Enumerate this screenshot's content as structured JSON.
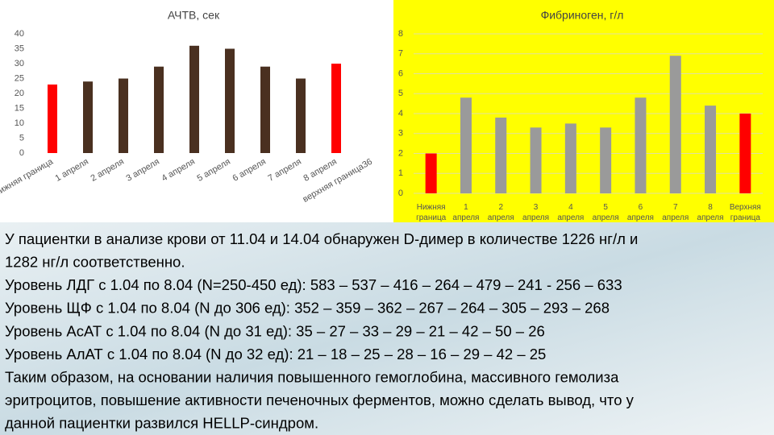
{
  "chart_data": [
    {
      "type": "bar",
      "title": "АЧТВ, сек",
      "categories": [
        "Нижняя граница",
        "1 апреля",
        "2 апреля",
        "3 апреля",
        "4 апреля",
        "5 апреля",
        "6 апреля",
        "7 апреля",
        "8 апреля",
        "верхняя граница36"
      ],
      "values": [
        23,
        24,
        25,
        29,
        36,
        35,
        29,
        25,
        30,
        null
      ],
      "colors": [
        "#ff0000",
        "#4a3020",
        "#4a3020",
        "#4a3020",
        "#4a3020",
        "#4a3020",
        "#4a3020",
        "#4a3020",
        "#ff0000",
        null
      ],
      "ylim": [
        0,
        40
      ],
      "yticks": [
        0,
        5,
        10,
        15,
        20,
        25,
        30,
        35,
        40
      ],
      "grid": false,
      "background": "#ffffff"
    },
    {
      "type": "bar",
      "title": "Фибриноген, г/л",
      "categories": [
        "Нижняя граница",
        "1 апреля",
        "2 апреля",
        "3 апреля",
        "4 апреля",
        "5 апреля",
        "6 апреля",
        "7 апреля",
        "8 апреля",
        "Верхняя граница"
      ],
      "values": [
        2,
        4.8,
        3.8,
        3.3,
        3.5,
        3.3,
        4.8,
        6.9,
        4.4,
        4
      ],
      "colors": [
        "#ff0000",
        "#9a9a9a",
        "#9a9a9a",
        "#9a9a9a",
        "#9a9a9a",
        "#9a9a9a",
        "#9a9a9a",
        "#9a9a9a",
        "#9a9a9a",
        "#ff0000"
      ],
      "ylim": [
        0,
        8
      ],
      "yticks": [
        0,
        1,
        2,
        3,
        4,
        5,
        6,
        7,
        8
      ],
      "grid": true,
      "background": "#ffff00"
    }
  ],
  "text": {
    "lines": [
      "У пациентки в анализе крови от 11.04 и 14.04 обнаружен D-димер в количестве 1226 нг/л и",
      "1282 нг/л соответственно.",
      "Уровень ЛДГ с 1.04 по 8.04 (N=250-450 ед): 583 – 537 – 416 – 264 – 479 – 241  - 256 – 633",
      "Уровень ЩФ с 1.04 по 8.04 (N до 306 ед): 352 – 359 – 362 – 267 – 264 – 305 – 293 – 268",
      "Уровень АсАТ с 1.04 по 8.04 (N до 31 ед): 35 – 27 – 33 – 29 – 21 – 42 – 50 – 26",
      "Уровень АлАТ с 1.04 по 8.04 (N до 32 ед): 21 – 18 – 25 – 28 – 16 – 29 – 42 – 25",
      "Таким образом, на основании наличия повышенного гемоглобина, массивного гемолиза",
      "эритроцитов, повышение активности печеночных ферментов, можно сделать вывод, что у",
      "данной пациентки развился HELLP-синдром."
    ]
  }
}
